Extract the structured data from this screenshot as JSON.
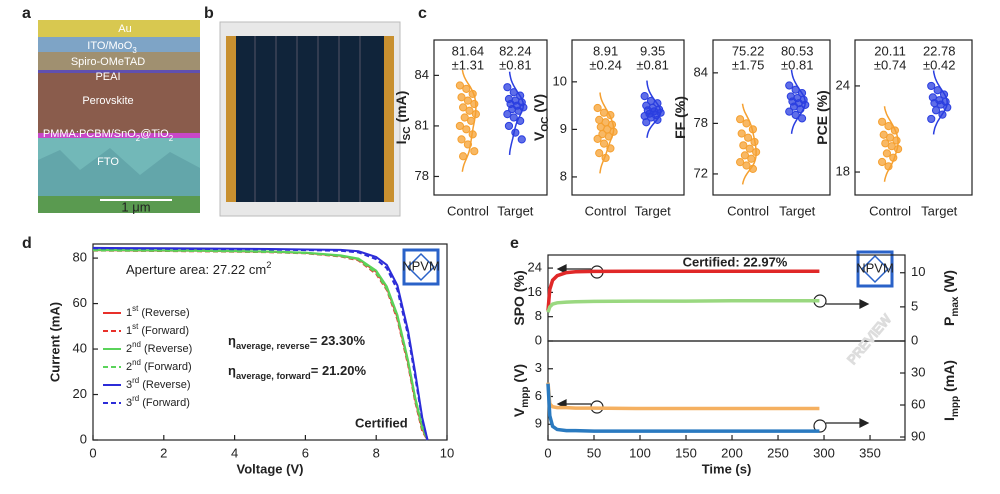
{
  "panel_labels": [
    "a",
    "b",
    "c",
    "d",
    "e"
  ],
  "image_a": {
    "layers": [
      [
        "Au"
      ],
      [
        "ITO/MoO",
        "3"
      ],
      [
        "Spiro-OMeTAD"
      ],
      [
        "PEAI"
      ],
      [
        "Perovskite"
      ],
      [
        "PMMA:PCBM/SnO",
        "2",
        "@TiO",
        "2"
      ],
      [
        "FTO"
      ]
    ],
    "scale_bar": "1 μm"
  },
  "logo_text": "NPVM",
  "watermark": "PREVIEW",
  "chart_data": [
    {
      "type": "strip",
      "ylabel": [
        "I",
        "SC",
        " (mA)"
      ],
      "categories": [
        "Control",
        "Target"
      ],
      "ylim": [
        76.9,
        86.1
      ],
      "yticks": [
        78,
        81,
        84
      ],
      "annotations": [
        [
          "81.64",
          "±1.31"
        ],
        [
          "82.24",
          "±0.81"
        ]
      ],
      "series": [
        {
          "name": "Control",
          "color": "#f5a030",
          "values": [
            83.4,
            83.2,
            82.9,
            82.7,
            82.5,
            82.3,
            82.1,
            81.9,
            81.7,
            81.5,
            81.3,
            81.0,
            80.8,
            80.5,
            80.2,
            79.9,
            79.5,
            79.2
          ]
        },
        {
          "name": "Target",
          "color": "#2a3ee0",
          "values": [
            83.3,
            83.0,
            82.8,
            82.6,
            82.5,
            82.4,
            82.3,
            82.2,
            82.1,
            82.0,
            81.9,
            81.7,
            81.5,
            81.3,
            81.0,
            80.6,
            80.2
          ]
        }
      ]
    },
    {
      "type": "strip",
      "ylabel": [
        "V",
        "OC",
        " (V)"
      ],
      "categories": [
        "Control",
        "Target"
      ],
      "ylim": [
        7.62,
        10.88
      ],
      "yticks": [
        8,
        9,
        10
      ],
      "annotations": [
        [
          "8.91",
          "±0.24"
        ],
        [
          "9.35",
          "±0.81"
        ]
      ],
      "series": [
        {
          "name": "Control",
          "color": "#f5a030",
          "values": [
            9.45,
            9.35,
            9.3,
            9.2,
            9.15,
            9.1,
            9.05,
            9.0,
            8.95,
            8.9,
            8.85,
            8.8,
            8.7,
            8.6,
            8.5,
            8.4
          ]
        },
        {
          "name": "Target",
          "color": "#2a3ee0",
          "values": [
            9.7,
            9.6,
            9.55,
            9.5,
            9.45,
            9.42,
            9.4,
            9.38,
            9.35,
            9.33,
            9.3,
            9.28,
            9.25,
            9.2,
            9.15
          ]
        }
      ]
    },
    {
      "type": "strip",
      "ylabel": [
        "FF (%)"
      ],
      "categories": [
        "Control",
        "Target"
      ],
      "ylim": [
        69.5,
        87.9
      ],
      "yticks": [
        72,
        78,
        84
      ],
      "annotations": [
        [
          "75.22",
          "±1.75"
        ],
        [
          "80.53",
          "±0.81"
        ]
      ],
      "series": [
        {
          "name": "Control",
          "color": "#f5a030",
          "values": [
            78.5,
            78.0,
            77.3,
            76.8,
            76.3,
            75.8,
            75.4,
            75.0,
            74.6,
            74.2,
            73.8,
            73.4,
            73.0,
            72.6
          ]
        },
        {
          "name": "Target",
          "color": "#2a3ee0",
          "values": [
            82.5,
            82.0,
            81.6,
            81.2,
            81.0,
            80.8,
            80.6,
            80.4,
            80.2,
            80.0,
            79.7,
            79.4,
            79.0,
            78.6
          ]
        }
      ]
    },
    {
      "type": "strip",
      "ylabel": [
        "PCE (%)"
      ],
      "categories": [
        "Control",
        "Target"
      ],
      "ylim": [
        16.4,
        27.2
      ],
      "yticks": [
        18,
        24
      ],
      "annotations": [
        [
          "20.11",
          "±0.74"
        ],
        [
          "22.78",
          "±0.42"
        ]
      ],
      "series": [
        {
          "name": "Control",
          "color": "#f5a030",
          "values": [
            21.5,
            21.2,
            20.9,
            20.6,
            20.4,
            20.2,
            20.0,
            19.8,
            19.6,
            19.3,
            19.0,
            18.7,
            18.4
          ]
        },
        {
          "name": "Target",
          "color": "#2a3ee0",
          "values": [
            24.0,
            23.7,
            23.4,
            23.2,
            23.0,
            22.9,
            22.8,
            22.7,
            22.5,
            22.3,
            22.0,
            21.7
          ]
        }
      ]
    },
    {
      "type": "line",
      "xlabel": "Voltage (V)",
      "ylabel": "Current (mA)",
      "xlim": [
        0,
        10
      ],
      "ylim": [
        0,
        86.2
      ],
      "xticks": [
        0,
        2,
        4,
        6,
        8,
        10
      ],
      "yticks": [
        0,
        20,
        40,
        60,
        80
      ],
      "annotations": {
        "area": [
          "Aperture area: 27.22 cm",
          "2"
        ],
        "eta_reverse": [
          "η",
          "average, reverse",
          "= 23.30%"
        ],
        "eta_forward": [
          "η",
          "average, forward",
          "= 21.20%"
        ],
        "certified": "Certified"
      },
      "x": [
        0,
        1,
        2,
        3,
        4,
        5,
        6,
        7,
        7.5,
        8,
        8.3,
        8.6,
        8.9,
        9.1,
        9.3,
        9.45
      ],
      "series": [
        {
          "name": [
            "1",
            "st",
            " (Reverse)"
          ],
          "color": "#e8302a",
          "dash": false,
          "values": [
            83.5,
            83.4,
            83.3,
            83.2,
            83.0,
            82.8,
            82.3,
            81.0,
            79.5,
            74,
            67,
            54,
            34,
            18,
            5,
            0
          ]
        },
        {
          "name": [
            "1",
            "st",
            " (Forward)"
          ],
          "color": "#e8302a",
          "dash": true,
          "values": [
            83.3,
            83.2,
            83.1,
            83.0,
            82.8,
            82.6,
            82.1,
            80.7,
            79.0,
            73,
            66,
            53,
            33,
            17,
            4,
            0
          ]
        },
        {
          "name": [
            "2",
            "nd",
            " (Reverse)"
          ],
          "color": "#5ad35a",
          "dash": false,
          "values": [
            83.6,
            83.5,
            83.4,
            83.3,
            83.1,
            82.9,
            82.4,
            81.2,
            79.8,
            74.5,
            67.5,
            55,
            35,
            19,
            6,
            0
          ]
        },
        {
          "name": [
            "2",
            "nd",
            " (Forward)"
          ],
          "color": "#5ad35a",
          "dash": true,
          "values": [
            83.4,
            83.3,
            83.2,
            83.1,
            82.9,
            82.7,
            82.2,
            80.9,
            79.3,
            73.5,
            66.5,
            54,
            34,
            18,
            5,
            0
          ]
        },
        {
          "name": [
            "3",
            "rd",
            " (Reverse)"
          ],
          "color": "#2c2cd8",
          "dash": false,
          "values": [
            84.5,
            84.4,
            84.3,
            84.2,
            84.1,
            84.0,
            83.8,
            83.6,
            83.0,
            80.5,
            77,
            68,
            48,
            30,
            10,
            0
          ]
        },
        {
          "name": [
            "3",
            "rd",
            " (Forward)"
          ],
          "color": "#2c2cd8",
          "dash": true,
          "values": [
            84.3,
            84.2,
            84.1,
            84.0,
            83.9,
            83.8,
            83.5,
            83.2,
            82.5,
            79.5,
            75.5,
            66,
            46,
            28,
            9,
            0
          ]
        }
      ]
    },
    {
      "type": "dual_line",
      "ylabel": [
        "SPO (%)"
      ],
      "y2label": [
        "P",
        "max",
        " (W)"
      ],
      "xlim": [
        0,
        388
      ],
      "ylim": [
        0,
        28.3
      ],
      "y2lim": [
        0,
        12.6
      ],
      "yticks": [
        0,
        8,
        16,
        24
      ],
      "y2ticks": [
        0,
        5,
        10
      ],
      "inverted": false,
      "annotation": "Certified: 22.97%",
      "x": [
        0,
        2,
        5,
        10,
        20,
        30,
        50,
        100,
        150,
        200,
        250,
        295
      ],
      "series": [
        {
          "name": "SPO",
          "color": "#e02828",
          "values": [
            10,
            17,
            20,
            21.5,
            22.5,
            22.8,
            22.9,
            22.97,
            22.97,
            22.97,
            22.97,
            22.97
          ]
        },
        {
          "name": "Pmax",
          "color": "#9ad880",
          "axis": "y2",
          "values": [
            4.2,
            5.0,
            5.4,
            5.6,
            5.7,
            5.75,
            5.8,
            5.85,
            5.85,
            5.9,
            5.9,
            5.9
          ]
        }
      ]
    },
    {
      "type": "dual_line",
      "xlabel": "Time (s)",
      "ylabel": [
        "V",
        "mpp",
        " (V)"
      ],
      "y2label": [
        "I",
        "mpp",
        " (mA)"
      ],
      "xlim": [
        0,
        388
      ],
      "ylim": [
        0,
        10.7
      ],
      "y2lim": [
        0,
        92.8
      ],
      "xticks": [
        0,
        50,
        100,
        150,
        200,
        250,
        300,
        350
      ],
      "yticks": [
        3,
        6,
        9
      ],
      "y2ticks": [
        30,
        60,
        90
      ],
      "inverted": true,
      "x": [
        0,
        2,
        5,
        10,
        20,
        30,
        50,
        100,
        150,
        200,
        250,
        295
      ],
      "series": [
        {
          "name": "Vmpp",
          "color": "#f5b060",
          "values": [
            4.5,
            6.8,
            7.1,
            7.2,
            7.2,
            7.25,
            7.25,
            7.3,
            7.3,
            7.3,
            7.3,
            7.3
          ]
        },
        {
          "name": "Impp",
          "color": "#2a7ac0",
          "axis": "y2",
          "values": [
            40,
            70,
            80,
            83,
            84,
            84,
            84.5,
            84.5,
            84.5,
            84.5,
            84.5,
            84.5
          ]
        }
      ]
    }
  ]
}
